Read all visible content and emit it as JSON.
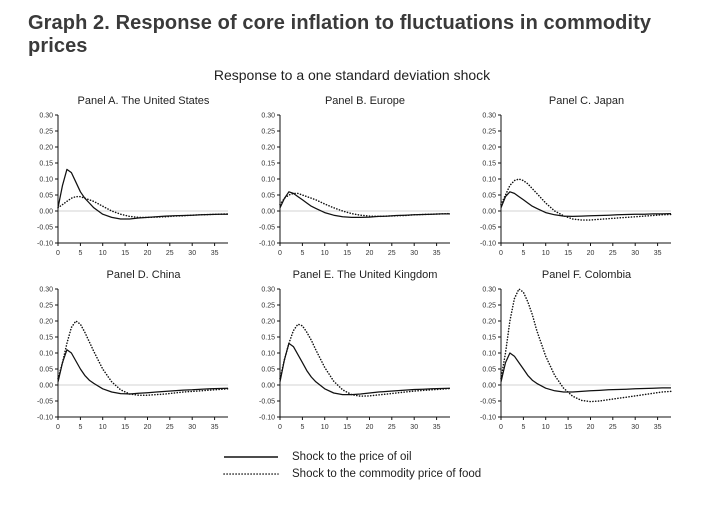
{
  "page": {
    "title": "Graph 2. Response of core inflation to fluctuations in commodity prices",
    "subtitle": "Response to a one standard deviation shock"
  },
  "legend": {
    "oil_label": "Shock to the price of oil",
    "food_label": "Shock to the commodity price of food"
  },
  "colors": {
    "line": "#111111",
    "zero_line": "#c4c4c4",
    "axis": "#111111",
    "tick_text": "#333333",
    "title": "#3a3a3a"
  },
  "chart_data": {
    "type": "line",
    "title": "Graph 2. Response of core inflation to fluctuations in commodity prices",
    "subtitle": "Response to a one standard deviation shock",
    "ylim": [
      -0.1,
      0.3
    ],
    "yticks": [
      0.3,
      0.25,
      0.2,
      0.15,
      0.1,
      0.05,
      0.0,
      -0.05,
      -0.1
    ],
    "xticks": [
      0,
      5,
      10,
      15,
      20,
      25,
      30,
      35
    ],
    "xmax": 38,
    "grid": "zero-line only",
    "legend_position": "bottom-center",
    "series_names": [
      "Shock to the price of oil",
      "Shock to the commodity price of food"
    ],
    "x": [
      0,
      1,
      2,
      3,
      4,
      5,
      6,
      7,
      8,
      10,
      12,
      14,
      16,
      18,
      20,
      22,
      24,
      26,
      28,
      30,
      32,
      34,
      36,
      38
    ],
    "panels": [
      {
        "title": "Panel A. The United States",
        "oil": [
          0.01,
          0.08,
          0.13,
          0.12,
          0.09,
          0.06,
          0.04,
          0.025,
          0.01,
          -0.01,
          -0.02,
          -0.025,
          -0.025,
          -0.022,
          -0.02,
          -0.018,
          -0.016,
          -0.015,
          -0.014,
          -0.013,
          -0.012,
          -0.011,
          -0.01,
          -0.01
        ],
        "food": [
          0.01,
          0.02,
          0.03,
          0.04,
          0.045,
          0.045,
          0.04,
          0.035,
          0.03,
          0.015,
          0.0,
          -0.01,
          -0.017,
          -0.02,
          -0.02,
          -0.019,
          -0.018,
          -0.016,
          -0.015,
          -0.013,
          -0.012,
          -0.011,
          -0.01,
          -0.009
        ]
      },
      {
        "title": "Panel B. Europe",
        "oil": [
          0.01,
          0.04,
          0.06,
          0.055,
          0.045,
          0.035,
          0.025,
          0.015,
          0.008,
          -0.005,
          -0.013,
          -0.018,
          -0.02,
          -0.02,
          -0.019,
          -0.017,
          -0.016,
          -0.014,
          -0.013,
          -0.012,
          -0.011,
          -0.01,
          -0.009,
          -0.009
        ],
        "food": [
          0.02,
          0.04,
          0.05,
          0.055,
          0.055,
          0.05,
          0.045,
          0.04,
          0.035,
          0.022,
          0.01,
          0.0,
          -0.008,
          -0.013,
          -0.016,
          -0.017,
          -0.016,
          -0.015,
          -0.014,
          -0.012,
          -0.011,
          -0.01,
          -0.009,
          -0.008
        ]
      },
      {
        "title": "Panel C. Japan",
        "oil": [
          0.01,
          0.045,
          0.06,
          0.055,
          0.045,
          0.035,
          0.025,
          0.015,
          0.008,
          -0.005,
          -0.012,
          -0.016,
          -0.017,
          -0.016,
          -0.015,
          -0.014,
          -0.013,
          -0.012,
          -0.011,
          -0.01,
          -0.01,
          -0.009,
          -0.009,
          -0.008
        ],
        "food": [
          0.02,
          0.05,
          0.08,
          0.095,
          0.1,
          0.095,
          0.085,
          0.07,
          0.055,
          0.025,
          0.0,
          -0.015,
          -0.025,
          -0.028,
          -0.028,
          -0.026,
          -0.024,
          -0.022,
          -0.02,
          -0.018,
          -0.016,
          -0.014,
          -0.012,
          -0.011
        ]
      },
      {
        "title": "Panel D. China",
        "oil": [
          0.01,
          0.07,
          0.11,
          0.1,
          0.075,
          0.05,
          0.03,
          0.015,
          0.005,
          -0.012,
          -0.022,
          -0.027,
          -0.028,
          -0.026,
          -0.024,
          -0.022,
          -0.02,
          -0.018,
          -0.016,
          -0.015,
          -0.013,
          -0.012,
          -0.011,
          -0.01
        ],
        "food": [
          0.02,
          0.07,
          0.13,
          0.18,
          0.2,
          0.19,
          0.165,
          0.135,
          0.105,
          0.05,
          0.01,
          -0.015,
          -0.028,
          -0.032,
          -0.032,
          -0.03,
          -0.028,
          -0.025,
          -0.022,
          -0.02,
          -0.018,
          -0.016,
          -0.014,
          -0.012
        ]
      },
      {
        "title": "Panel E. The United Kingdom",
        "oil": [
          0.01,
          0.08,
          0.13,
          0.12,
          0.095,
          0.07,
          0.045,
          0.025,
          0.01,
          -0.012,
          -0.025,
          -0.03,
          -0.03,
          -0.028,
          -0.025,
          -0.022,
          -0.02,
          -0.018,
          -0.016,
          -0.014,
          -0.013,
          -0.012,
          -0.011,
          -0.01
        ],
        "food": [
          0.02,
          0.08,
          0.13,
          0.17,
          0.19,
          0.185,
          0.165,
          0.14,
          0.11,
          0.055,
          0.012,
          -0.015,
          -0.03,
          -0.035,
          -0.034,
          -0.031,
          -0.028,
          -0.025,
          -0.022,
          -0.019,
          -0.017,
          -0.015,
          -0.013,
          -0.011
        ]
      },
      {
        "title": "Panel F. Colombia",
        "oil": [
          0.01,
          0.07,
          0.1,
          0.09,
          0.07,
          0.05,
          0.03,
          0.015,
          0.005,
          -0.01,
          -0.018,
          -0.022,
          -0.022,
          -0.02,
          -0.018,
          -0.017,
          -0.015,
          -0.014,
          -0.013,
          -0.012,
          -0.011,
          -0.01,
          -0.009,
          -0.009
        ],
        "food": [
          0.02,
          0.1,
          0.2,
          0.27,
          0.3,
          0.29,
          0.26,
          0.22,
          0.17,
          0.09,
          0.03,
          -0.01,
          -0.035,
          -0.048,
          -0.052,
          -0.05,
          -0.046,
          -0.042,
          -0.038,
          -0.034,
          -0.03,
          -0.026,
          -0.022,
          -0.02
        ]
      }
    ]
  }
}
